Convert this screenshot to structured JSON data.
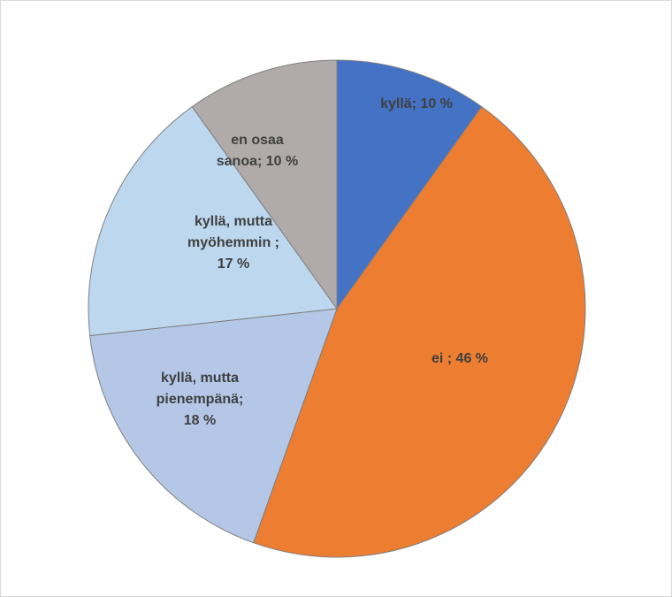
{
  "chart_data": {
    "type": "pie",
    "categories": [
      "kyllä;",
      "ei ;",
      "kyllä, mutta pienempänä;",
      "kyllä, mutta myöhemmin ;",
      "en osaa sanoa;"
    ],
    "values": [
      10,
      46,
      18,
      17,
      10
    ],
    "value_labels": [
      "10 %",
      "46 %",
      "18 %",
      "17 %",
      "10 %"
    ],
    "colors": [
      "#4472c4",
      "#ed7d31",
      "#b4c7e7",
      "#bdd7ee",
      "#b0abaa"
    ]
  }
}
